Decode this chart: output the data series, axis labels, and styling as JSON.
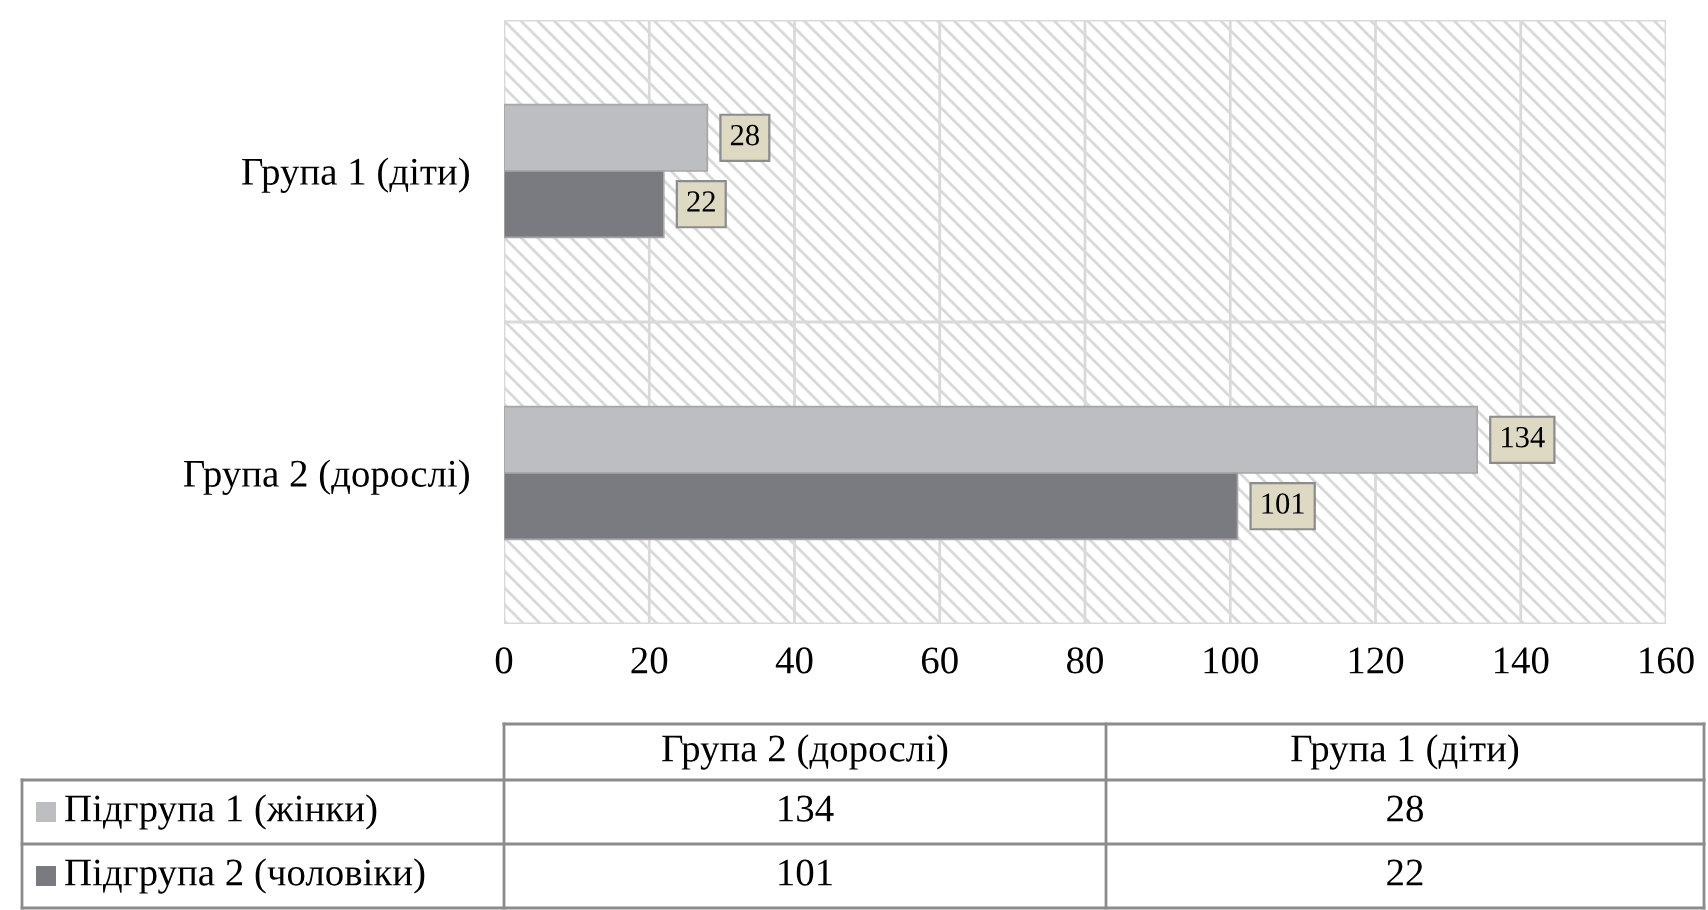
{
  "chart_data": {
    "type": "bar",
    "orientation": "horizontal",
    "categories": [
      "Група 1 (діти)",
      "Група 2 (дорослі)"
    ],
    "series": [
      {
        "name": "Підгрупа 1 (жінки)",
        "color": "#bdbec2",
        "values": [
          28,
          134
        ],
        "value_labels": [
          "28",
          "134"
        ]
      },
      {
        "name": "Підгрупа 2 (чоловіки)",
        "color": "#7a7b80",
        "values": [
          22,
          101
        ],
        "value_labels": [
          "22",
          "101"
        ]
      }
    ],
    "xlim": [
      0,
      160
    ],
    "xticks": [
      0,
      20,
      40,
      60,
      80,
      100,
      120,
      140,
      160
    ],
    "grid": "x",
    "legend": "bottom",
    "data_labels": true,
    "annotations": [
      "134",
      "28",
      "101",
      "22"
    ]
  }
}
